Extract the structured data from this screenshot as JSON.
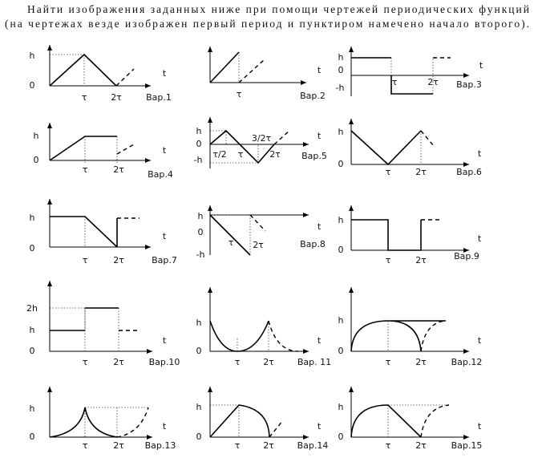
{
  "header": {
    "line1": "Найти изображения заданных ниже при помощи чертежей периодических функций",
    "line2": "(на чертежах везде изображен первый период и пунктиром намечено начало второго)."
  },
  "panels": [
    {
      "labels": [
        "h",
        "0",
        "t",
        "τ",
        "2τ",
        "Вар.1"
      ]
    },
    {
      "labels": [
        "t",
        "τ",
        "Вар.2"
      ]
    },
    {
      "labels": [
        "h",
        "0",
        "-h",
        "t",
        "τ",
        "2τ",
        "Вар.3"
      ]
    },
    {
      "labels": [
        "h",
        "0",
        "t",
        "τ",
        "2τ",
        "Вар.4"
      ]
    },
    {
      "labels": [
        "h",
        "0",
        "-h",
        "τ/2",
        "τ",
        "3/2τ",
        "2τ",
        "t",
        "Вар.5"
      ]
    },
    {
      "labels": [
        "h",
        "0",
        "τ",
        "2τ",
        "t",
        "Вар.6"
      ]
    },
    {
      "labels": [
        "h",
        "0",
        "t",
        "τ",
        "2τ",
        "Вар.7"
      ]
    },
    {
      "labels": [
        "h",
        "0",
        "-h",
        "τ",
        "2τ",
        "t",
        "Вар.8"
      ]
    },
    {
      "labels": [
        "h",
        "0",
        "τ",
        "2τ",
        "t",
        "Вар.9"
      ]
    },
    {
      "labels": [
        "2h",
        "h",
        "0",
        "τ",
        "2τ",
        "t",
        "Вар.10"
      ]
    },
    {
      "labels": [
        "h",
        "0",
        "τ",
        "2τ",
        "t",
        "Вар. 11"
      ]
    },
    {
      "labels": [
        "h",
        "0",
        "τ",
        "2τ",
        "t",
        "Вар.12"
      ]
    },
    {
      "labels": [
        "h",
        "0",
        "τ",
        "2τ",
        "t",
        "Вар.13"
      ]
    },
    {
      "labels": [
        "h",
        "0",
        "τ",
        "2τ",
        "t",
        "Вар.14"
      ]
    },
    {
      "labels": [
        "h",
        "0",
        "τ",
        "2τ",
        "t",
        "Вар.15"
      ]
    }
  ]
}
